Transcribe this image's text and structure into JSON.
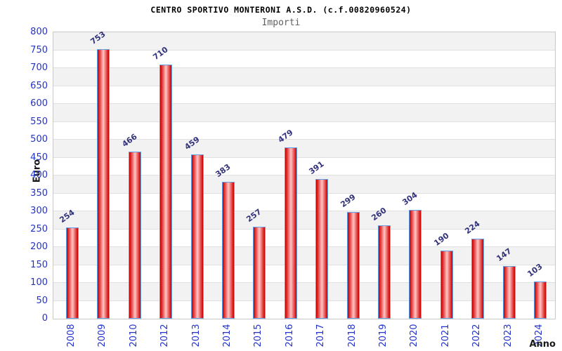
{
  "chart_data": {
    "type": "bar",
    "title": "CENTRO SPORTIVO MONTERONI A.S.D. (c.f.00820960524)",
    "subtitle": "Importi",
    "xlabel": "Anno",
    "ylabel": "Euro",
    "categories": [
      "2008",
      "2009",
      "2010",
      "2012",
      "2013",
      "2014",
      "2015",
      "2016",
      "2017",
      "2018",
      "2019",
      "2020",
      "2021",
      "2022",
      "2023",
      "2024"
    ],
    "values": [
      254,
      753,
      466,
      710,
      459,
      383,
      257,
      479,
      391,
      299,
      260,
      304,
      190,
      224,
      147,
      103
    ],
    "ylim": [
      0,
      800
    ],
    "ytick_step": 50,
    "ytick_labels": [
      "0",
      "50",
      "100",
      "150",
      "200",
      "250",
      "300",
      "350",
      "400",
      "450",
      "500",
      "550",
      "600",
      "650",
      "700",
      "750",
      "800"
    ],
    "legend": "none",
    "grid": "alternating horizontal bands every 50",
    "colors": {
      "bar_edge_red": "#c00000",
      "bar_mid_red": "#ef6a6a",
      "bar_center_highlight": "#ffc2c2",
      "bar_border_blue": "#64a0e8",
      "axis_tick_blue": "#2233cc",
      "value_label_navy": "#32327d",
      "band_gray": "#f2f2f2",
      "grid_line": "#e0e0e0",
      "plot_border": "#c9c9c9",
      "title_color": "#000000",
      "subtitle_gray": "#606060",
      "axis_title_color": "#1a1a1a"
    }
  }
}
